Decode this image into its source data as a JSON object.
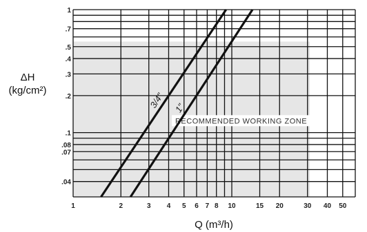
{
  "chart_data": {
    "type": "line",
    "title": "",
    "xlabel": "Q (m³/h)",
    "ylabel_line1": "ΔH",
    "ylabel_line2": "(kg/cm²)",
    "x_scale": "log",
    "y_scale": "log",
    "xlim": [
      1,
      60
    ],
    "ylim": [
      0.03,
      1
    ],
    "x_ticks": [
      {
        "value": 1,
        "label": "1"
      },
      {
        "value": 2,
        "label": "2"
      },
      {
        "value": 3,
        "label": "3"
      },
      {
        "value": 4,
        "label": "4"
      },
      {
        "value": 5,
        "label": "5"
      },
      {
        "value": 6,
        "label": "6"
      },
      {
        "value": 7,
        "label": "7"
      },
      {
        "value": 8,
        "label": "8"
      },
      {
        "value": 10,
        "label": "10"
      },
      {
        "value": 15,
        "label": "15"
      },
      {
        "value": 20,
        "label": "20"
      },
      {
        "value": 30,
        "label": "30"
      },
      {
        "value": 40,
        "label": "40"
      },
      {
        "value": 50,
        "label": "50"
      }
    ],
    "y_ticks": [
      {
        "value": 1,
        "label": "1"
      },
      {
        "value": 0.7,
        "label": ".7"
      },
      {
        "value": 0.5,
        "label": ".5"
      },
      {
        "value": 0.4,
        "label": ".4"
      },
      {
        "value": 0.3,
        "label": ".3"
      },
      {
        "value": 0.2,
        "label": ".2"
      },
      {
        "value": 0.1,
        "label": ".1"
      },
      {
        "value": 0.08,
        "label": ".08"
      },
      {
        "value": 0.07,
        "label": ".07"
      },
      {
        "value": 0.04,
        "label": ".04"
      }
    ],
    "grid": true,
    "extra_grid_x": [
      9,
      60
    ],
    "extra_grid_y": [
      0.09,
      0.06,
      0.05,
      0.6,
      0.8,
      0.9
    ],
    "zone": {
      "label": "RECOMMENDED WORKING ZONE",
      "x_range": [
        1,
        31
      ],
      "y_range": [
        0.03,
        0.55
      ],
      "color": "#e6e6e6"
    },
    "series": [
      {
        "name": "3/4\"",
        "x": [
          1.5,
          9.2
        ],
        "y": [
          0.03,
          1.0
        ]
      },
      {
        "name": "1\"",
        "x": [
          2.3,
          13.5
        ],
        "y": [
          0.03,
          1.0
        ]
      }
    ],
    "line_color": "#111111"
  }
}
